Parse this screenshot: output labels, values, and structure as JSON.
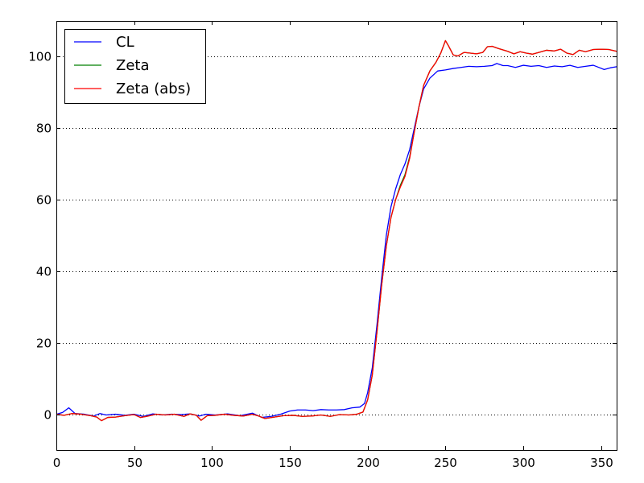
{
  "chart_data": {
    "type": "line",
    "title": "",
    "xlabel": "",
    "ylabel": "",
    "xlim": [
      0,
      360
    ],
    "ylim": [
      -10,
      110
    ],
    "xticks": [
      0,
      50,
      100,
      150,
      200,
      250,
      300,
      350
    ],
    "yticks": [
      0,
      20,
      40,
      60,
      80,
      100
    ],
    "grid": "horizontal dotted",
    "legend_position": "top-left",
    "series": [
      {
        "name": "CL",
        "color": "#0000ff",
        "points": [
          [
            0,
            0
          ],
          [
            4,
            0.5
          ],
          [
            8,
            1.8
          ],
          [
            12,
            0.2
          ],
          [
            18,
            0
          ],
          [
            24,
            -0.5
          ],
          [
            28,
            0.2
          ],
          [
            32,
            -0.2
          ],
          [
            38,
            0
          ],
          [
            44,
            -0.3
          ],
          [
            50,
            0
          ],
          [
            56,
            -0.6
          ],
          [
            62,
            0.1
          ],
          [
            68,
            -0.2
          ],
          [
            74,
            0
          ],
          [
            80,
            -0.1
          ],
          [
            86,
            0.1
          ],
          [
            92,
            -0.5
          ],
          [
            96,
            0
          ],
          [
            102,
            -0.2
          ],
          [
            110,
            0.1
          ],
          [
            118,
            -0.4
          ],
          [
            126,
            0.3
          ],
          [
            132,
            -0.9
          ],
          [
            138,
            -0.6
          ],
          [
            144,
            0
          ],
          [
            150,
            0.9
          ],
          [
            155,
            1.2
          ],
          [
            160,
            1.2
          ],
          [
            165,
            1.0
          ],
          [
            170,
            1.3
          ],
          [
            175,
            1.2
          ],
          [
            180,
            1.2
          ],
          [
            185,
            1.3
          ],
          [
            190,
            1.8
          ],
          [
            195,
            2.0
          ],
          [
            198,
            3
          ],
          [
            200,
            6
          ],
          [
            203,
            13
          ],
          [
            206,
            25
          ],
          [
            209,
            38
          ],
          [
            212,
            50
          ],
          [
            215,
            58
          ],
          [
            218,
            63
          ],
          [
            221,
            67
          ],
          [
            224,
            70
          ],
          [
            227,
            74
          ],
          [
            230,
            80
          ],
          [
            233,
            86
          ],
          [
            236,
            91
          ],
          [
            240,
            94
          ],
          [
            245,
            96
          ],
          [
            250,
            96.3
          ],
          [
            255,
            96.7
          ],
          [
            260,
            97.0
          ],
          [
            265,
            97.3
          ],
          [
            270,
            97.2
          ],
          [
            275,
            97.3
          ],
          [
            280,
            97.5
          ],
          [
            283,
            98.1
          ],
          [
            287,
            97.5
          ],
          [
            290,
            97.5
          ],
          [
            295,
            97.0
          ],
          [
            300,
            97.6
          ],
          [
            305,
            97.3
          ],
          [
            310,
            97.5
          ],
          [
            315,
            97.0
          ],
          [
            320,
            97.4
          ],
          [
            325,
            97.2
          ],
          [
            330,
            97.6
          ],
          [
            335,
            97.0
          ],
          [
            340,
            97.3
          ],
          [
            345,
            97.6
          ],
          [
            348,
            97.1
          ],
          [
            352,
            96.4
          ],
          [
            356,
            96.9
          ],
          [
            360,
            97.2
          ]
        ]
      },
      {
        "name": "Zeta",
        "color": "#008000",
        "points": [
          [
            0,
            0
          ],
          [
            5,
            -0.3
          ],
          [
            10,
            0.2
          ],
          [
            16,
            0
          ],
          [
            22,
            -0.4
          ],
          [
            26,
            -0.8
          ],
          [
            29,
            -1.8
          ],
          [
            33,
            -0.9
          ],
          [
            38,
            -0.8
          ],
          [
            44,
            -0.4
          ],
          [
            50,
            -0.1
          ],
          [
            54,
            -0.9
          ],
          [
            58,
            -0.6
          ],
          [
            64,
            0
          ],
          [
            70,
            -0.2
          ],
          [
            76,
            0
          ],
          [
            82,
            -0.6
          ],
          [
            86,
            0.1
          ],
          [
            90,
            -0.3
          ],
          [
            93,
            -1.7
          ],
          [
            97,
            -0.4
          ],
          [
            102,
            -0.3
          ],
          [
            108,
            0
          ],
          [
            114,
            -0.3
          ],
          [
            120,
            -0.5
          ],
          [
            126,
            0
          ],
          [
            130,
            -0.5
          ],
          [
            134,
            -1.2
          ],
          [
            140,
            -0.8
          ],
          [
            146,
            -0.4
          ],
          [
            152,
            -0.3
          ],
          [
            158,
            -0.6
          ],
          [
            164,
            -0.5
          ],
          [
            170,
            -0.2
          ],
          [
            176,
            -0.6
          ],
          [
            182,
            -0.1
          ],
          [
            188,
            -0.2
          ],
          [
            193,
            0
          ],
          [
            197,
            0.6
          ],
          [
            200,
            4
          ],
          [
            203,
            11
          ],
          [
            206,
            23
          ],
          [
            209,
            36
          ],
          [
            212,
            47
          ],
          [
            215,
            55
          ],
          [
            218,
            60
          ],
          [
            221,
            64
          ],
          [
            224,
            67
          ],
          [
            227,
            72
          ],
          [
            230,
            79
          ],
          [
            233,
            86
          ],
          [
            236,
            92
          ],
          [
            240,
            96
          ],
          [
            244,
            98.5
          ],
          [
            247,
            101
          ],
          [
            250,
            104.5
          ],
          [
            252,
            103
          ],
          [
            255,
            100.5
          ],
          [
            258,
            100.2
          ],
          [
            262,
            101.2
          ],
          [
            266,
            101.0
          ],
          [
            270,
            100.8
          ],
          [
            274,
            101.2
          ],
          [
            277,
            102.8
          ],
          [
            280,
            102.9
          ],
          [
            284,
            102.3
          ],
          [
            290,
            101.5
          ],
          [
            294,
            100.8
          ],
          [
            298,
            101.4
          ],
          [
            302,
            101.0
          ],
          [
            306,
            100.7
          ],
          [
            310,
            101.2
          ],
          [
            315,
            101.8
          ],
          [
            320,
            101.6
          ],
          [
            324,
            102.1
          ],
          [
            328,
            101.0
          ],
          [
            332,
            100.6
          ],
          [
            336,
            101.8
          ],
          [
            340,
            101.4
          ],
          [
            345,
            102.0
          ],
          [
            350,
            102.1
          ],
          [
            355,
            102.0
          ],
          [
            360,
            101.5
          ]
        ]
      },
      {
        "name": "Zeta (abs)",
        "color": "#ff0000",
        "points": [
          [
            0,
            0
          ],
          [
            5,
            -0.3
          ],
          [
            10,
            0.2
          ],
          [
            16,
            0
          ],
          [
            22,
            -0.4
          ],
          [
            26,
            -0.8
          ],
          [
            29,
            -1.8
          ],
          [
            33,
            -0.9
          ],
          [
            38,
            -0.8
          ],
          [
            44,
            -0.4
          ],
          [
            50,
            -0.1
          ],
          [
            54,
            -0.9
          ],
          [
            58,
            -0.6
          ],
          [
            64,
            0
          ],
          [
            70,
            -0.2
          ],
          [
            76,
            0
          ],
          [
            82,
            -0.6
          ],
          [
            86,
            0.1
          ],
          [
            90,
            -0.3
          ],
          [
            93,
            -1.7
          ],
          [
            97,
            -0.4
          ],
          [
            102,
            -0.3
          ],
          [
            108,
            0
          ],
          [
            114,
            -0.3
          ],
          [
            120,
            -0.5
          ],
          [
            126,
            0
          ],
          [
            130,
            -0.5
          ],
          [
            134,
            -1.2
          ],
          [
            140,
            -0.8
          ],
          [
            146,
            -0.4
          ],
          [
            152,
            -0.3
          ],
          [
            158,
            -0.6
          ],
          [
            164,
            -0.5
          ],
          [
            170,
            -0.2
          ],
          [
            176,
            -0.6
          ],
          [
            182,
            -0.1
          ],
          [
            188,
            -0.2
          ],
          [
            193,
            0
          ],
          [
            197,
            0.6
          ],
          [
            200,
            4
          ],
          [
            203,
            11
          ],
          [
            206,
            23
          ],
          [
            209,
            36
          ],
          [
            212,
            47
          ],
          [
            215,
            55
          ],
          [
            218,
            60
          ],
          [
            221,
            63.5
          ],
          [
            224,
            66.5
          ],
          [
            227,
            71.5
          ],
          [
            230,
            79
          ],
          [
            233,
            86
          ],
          [
            236,
            92
          ],
          [
            240,
            96
          ],
          [
            244,
            98.5
          ],
          [
            247,
            101
          ],
          [
            250,
            104.5
          ],
          [
            252,
            103
          ],
          [
            255,
            100.5
          ],
          [
            258,
            100.2
          ],
          [
            262,
            101.2
          ],
          [
            266,
            101.0
          ],
          [
            270,
            100.8
          ],
          [
            274,
            101.2
          ],
          [
            277,
            102.8
          ],
          [
            280,
            102.9
          ],
          [
            284,
            102.3
          ],
          [
            290,
            101.5
          ],
          [
            294,
            100.8
          ],
          [
            298,
            101.4
          ],
          [
            302,
            101.0
          ],
          [
            306,
            100.7
          ],
          [
            310,
            101.2
          ],
          [
            315,
            101.8
          ],
          [
            320,
            101.6
          ],
          [
            324,
            102.1
          ],
          [
            328,
            101.0
          ],
          [
            332,
            100.6
          ],
          [
            336,
            101.8
          ],
          [
            340,
            101.4
          ],
          [
            345,
            102.0
          ],
          [
            350,
            102.1
          ],
          [
            355,
            102.0
          ],
          [
            360,
            101.5
          ]
        ]
      }
    ]
  }
}
